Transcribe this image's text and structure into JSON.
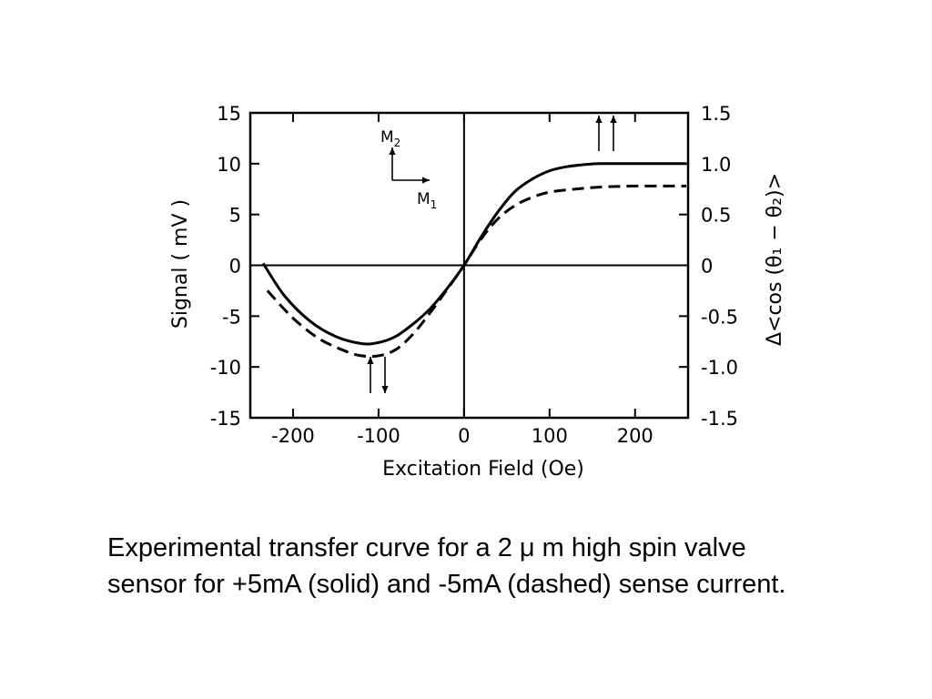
{
  "chart_data": {
    "type": "line",
    "title": "",
    "xlabel": "Excitation Field (Oe)",
    "ylabel": "Signal ( mV )",
    "y2label": "Δ<cos (θ₁ − θ₂)>",
    "xlim": [
      -250,
      262
    ],
    "ylim": [
      -15,
      15
    ],
    "y2lim": [
      -1.5,
      1.5
    ],
    "xticks": [
      -200,
      -100,
      0,
      100,
      200
    ],
    "xtick_labels": [
      "-200",
      "-100",
      "0",
      "100",
      "200"
    ],
    "yticks": [
      15,
      10,
      5,
      0,
      -5,
      -10,
      -15
    ],
    "ytick_labels": [
      "15",
      "10",
      "5",
      "0",
      "-5",
      "-10",
      "-15"
    ],
    "y2ticks": [
      1.5,
      1.0,
      0.5,
      0,
      -0.5,
      -1.0,
      -1.5
    ],
    "y2tick_labels": [
      "1.5",
      "1.0",
      "0.5",
      "0",
      "-0.5",
      "-1.0",
      "-1.5"
    ],
    "grid": false,
    "legend": "none",
    "series": [
      {
        "style": "solid",
        "x": [
          -235,
          -210,
          -180,
          -150,
          -120,
          -100,
          -80,
          -60,
          -40,
          -20,
          0,
          20,
          40,
          60,
          80,
          100,
          120,
          140,
          160,
          200,
          260
        ],
        "y": [
          0.2,
          -3.0,
          -5.5,
          -7.0,
          -7.7,
          -7.6,
          -7.0,
          -5.8,
          -4.3,
          -2.3,
          0.0,
          2.8,
          5.3,
          7.3,
          8.5,
          9.3,
          9.7,
          9.9,
          10.0,
          10.0,
          10.0
        ]
      },
      {
        "style": "dashed",
        "x": [
          -230,
          -200,
          -170,
          -140,
          -120,
          -100,
          -80,
          -60,
          -40,
          -20,
          0,
          20,
          40,
          60,
          80,
          100,
          130,
          160,
          200,
          260
        ],
        "y": [
          -2.5,
          -5.2,
          -7.2,
          -8.4,
          -8.9,
          -8.9,
          -8.3,
          -6.8,
          -4.7,
          -2.4,
          0.0,
          2.6,
          4.6,
          5.9,
          6.7,
          7.2,
          7.5,
          7.7,
          7.8,
          7.8
        ]
      }
    ],
    "annotations": {
      "m2_label": "M",
      "m2_sub": "2",
      "m1_label": "M",
      "m1_sub": "1"
    }
  },
  "caption": "Experimental transfer curve for a 2 μ m  high  spin valve sensor for +5mA (solid) and -5mA (dashed) sense current."
}
